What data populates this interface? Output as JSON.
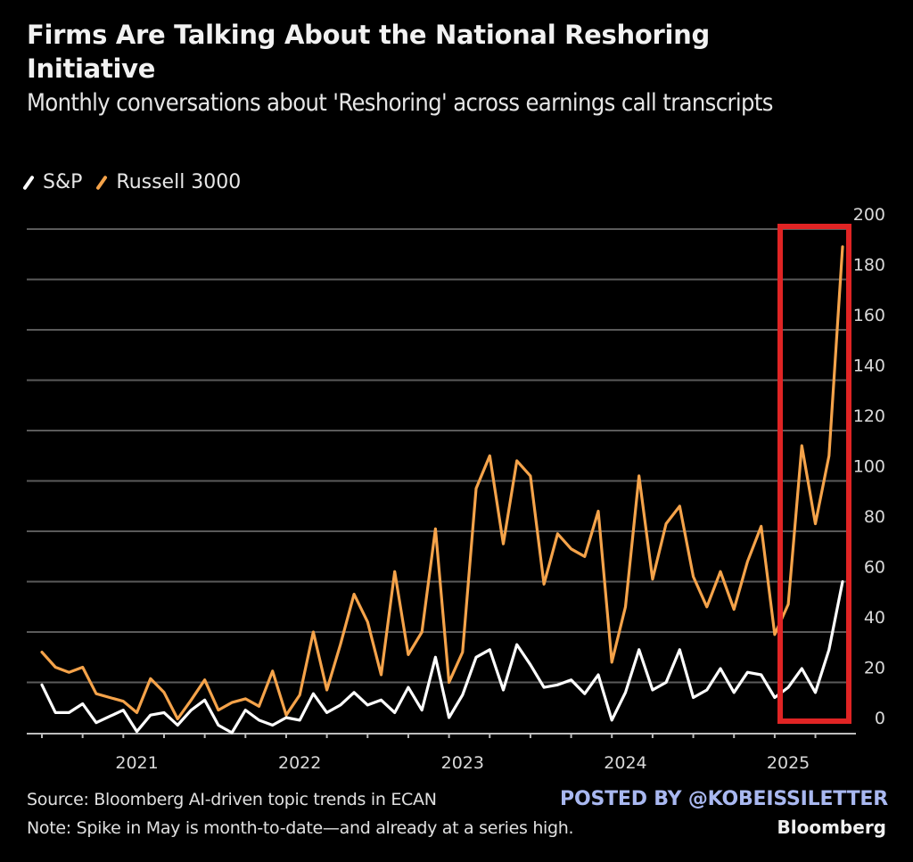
{
  "header": {
    "title": "Firms Are Talking About the National Reshoring Initiative",
    "subtitle": "Monthly conversations about 'Reshoring' across earnings call transcripts"
  },
  "legend": [
    {
      "label": "S&P",
      "color": "#ffffff"
    },
    {
      "label": "Russell 3000",
      "color": "#f5a34a"
    }
  ],
  "footer": {
    "source": "Source: Bloomberg AI-driven topic trends in ECAN",
    "note": "Note: Spike in May is month-to-date—and already at a series high.",
    "posted_by": "POSTED BY @KOBEISSILETTER",
    "brand": "Bloomberg"
  },
  "highlight": {
    "label": "highlight-2025",
    "from_month": "2025-01",
    "to_month": "2025-05",
    "color": "#e02424"
  },
  "chart_data": {
    "type": "line",
    "title": "Firms Are Talking About the National Reshoring Initiative",
    "subtitle": "Monthly conversations about 'Reshoring' across earnings call transcripts",
    "xlabel": "",
    "ylabel": "",
    "ylim": [
      0,
      200
    ],
    "yticks": [
      0,
      20,
      40,
      60,
      80,
      100,
      120,
      140,
      160,
      180,
      200
    ],
    "y_axis_side": "right",
    "grid": true,
    "legend_position": "top-left",
    "x_start": "2020-06",
    "x_end": "2025-05",
    "xtick_labels": [
      "2021",
      "2022",
      "2023",
      "2024",
      "2025"
    ],
    "series": [
      {
        "name": "S&P",
        "color": "#ffffff",
        "values": [
          19,
          8,
          8,
          11.5,
          4,
          6.5,
          9,
          0.5,
          7,
          8,
          3,
          9,
          13,
          3,
          0,
          9,
          5,
          3,
          6,
          5,
          15.5,
          8,
          11,
          16,
          11,
          13,
          8,
          18,
          9,
          30,
          6,
          15,
          30,
          33,
          17,
          35,
          27,
          18,
          19,
          21,
          15.5,
          23,
          5,
          16,
          33,
          17,
          20,
          33,
          14,
          17,
          25.5,
          16,
          24,
          23,
          14,
          18,
          25.5,
          16,
          33,
          60
        ]
      },
      {
        "name": "Russell 3000",
        "color": "#f5a34a",
        "values": [
          32,
          26,
          24,
          26,
          15.5,
          14,
          12.5,
          8,
          21.5,
          16,
          5.5,
          13,
          21,
          9,
          12,
          13.5,
          10.5,
          24.5,
          7,
          15,
          40,
          17,
          35,
          55,
          44,
          23,
          64,
          31,
          40,
          81,
          20,
          32,
          97,
          110,
          75,
          108,
          102,
          59,
          79,
          73,
          70,
          88,
          28,
          50,
          102,
          61,
          83,
          90,
          62,
          50,
          64,
          49,
          68,
          82,
          39,
          51,
          114,
          83,
          110,
          193
        ]
      }
    ]
  }
}
